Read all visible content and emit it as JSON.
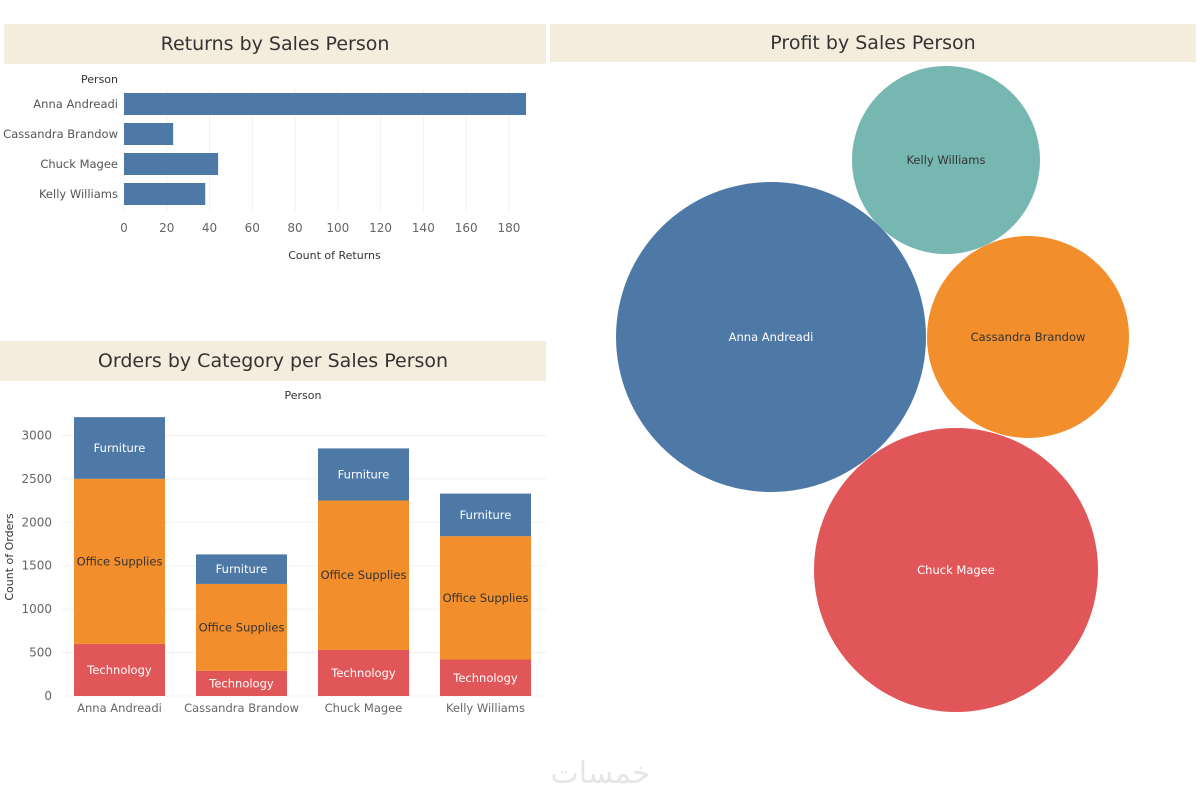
{
  "colors": {
    "furniture": "#4e79a7",
    "office_supplies": "#f28e2b",
    "technology": "#e15759",
    "kelly": "#76b7b2",
    "title_bg": "#f4ecdc"
  },
  "watermark": "خمسات",
  "chart_data": [
    {
      "id": "returns",
      "type": "bar",
      "orientation": "horizontal",
      "title": "Returns by Sales Person",
      "row_header": "Person",
      "categories": [
        "Anna Andreadi",
        "Cassandra Brandow",
        "Chuck Magee",
        "Kelly Williams"
      ],
      "values": [
        188,
        23,
        44,
        38
      ],
      "xlabel": "Count of Returns",
      "xlim": [
        0,
        195
      ],
      "xticks": [
        0,
        20,
        40,
        60,
        80,
        100,
        120,
        140,
        160,
        180
      ],
      "grid": true
    },
    {
      "id": "orders",
      "type": "bar",
      "stacked": true,
      "title": "Orders by Category per Sales Person",
      "column_header": "Person",
      "categories": [
        "Anna Andreadi",
        "Cassandra Brandow",
        "Chuck Magee",
        "Kelly Williams"
      ],
      "series": [
        {
          "name": "Technology",
          "values": [
            600,
            290,
            530,
            420
          ]
        },
        {
          "name": "Office Supplies",
          "values": [
            1900,
            1000,
            1720,
            1420
          ]
        },
        {
          "name": "Furniture",
          "values": [
            710,
            340,
            600,
            490
          ]
        }
      ],
      "ylabel": "Count of Orders",
      "ylim": [
        0,
        3200
      ],
      "yticks": [
        0,
        500,
        1000,
        1500,
        2000,
        2500,
        3000
      ],
      "grid": true
    },
    {
      "id": "profit",
      "type": "bubble",
      "title": "Profit by Sales Person",
      "bubbles": [
        {
          "label": "Anna Andreadi",
          "size": 1.0
        },
        {
          "label": "Chuck Magee",
          "size": 0.84
        },
        {
          "label": "Cassandra Brandow",
          "size": 0.43
        },
        {
          "label": "Kelly Williams",
          "size": 0.37
        }
      ]
    }
  ]
}
